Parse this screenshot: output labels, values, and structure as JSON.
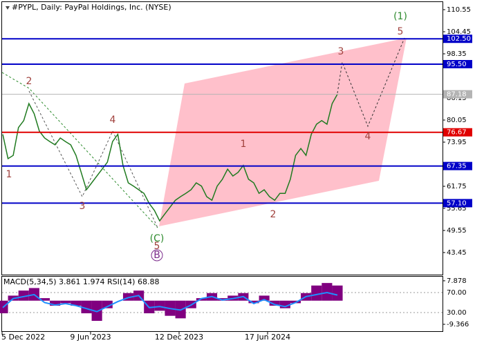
{
  "chart_data": [
    {
      "type": "line",
      "title": "#PYPL, Daily:  PayPal Holdings, Inc. (NYSE)",
      "color": "#1f7a1f",
      "values": [
        76.1,
        69.4,
        70.3,
        78.0,
        79.9,
        84.6,
        81.8,
        77.0,
        75.1,
        74.1,
        73.2,
        75.1,
        74.1,
        73.2,
        70.3,
        65.6,
        60.8,
        62.7,
        64.6,
        66.5,
        68.4,
        74.1,
        76.1,
        67.5,
        62.7,
        61.8,
        60.8,
        59.8,
        57.0,
        55.1,
        52.2,
        54.1,
        56.0,
        57.9,
        58.9,
        59.8,
        60.8,
        62.7,
        61.8,
        58.9,
        57.9,
        61.8,
        63.7,
        66.5,
        64.6,
        65.6,
        67.5,
        63.7,
        62.7,
        59.8,
        60.8,
        58.9,
        57.9,
        59.8,
        59.8,
        63.7,
        70.3,
        72.2,
        70.3,
        76.1,
        78.9,
        79.9,
        78.9,
        84.6,
        87.2
      ],
      "ylim": [
        37.54,
        112.65
      ],
      "yticks": [
        110.55,
        104.45,
        98.35,
        86.15,
        80.05,
        73.95,
        61.75,
        55.65,
        49.55,
        43.45
      ],
      "xtick_labels": [
        "5 Dec 2022",
        "9 Jun 2023",
        "12 Dec 2023",
        "17 Jun 2024"
      ],
      "levels": [
        {
          "value": 102.5,
          "label": "102.50",
          "color": "#0000c8"
        },
        {
          "value": 95.5,
          "label": "95.50",
          "color": "#0000c8"
        },
        {
          "value": 87.18,
          "label": "87.18",
          "color": "#b4b4b4"
        },
        {
          "value": 76.67,
          "label": "76.67",
          "color": "#e00000"
        },
        {
          "value": 67.35,
          "label": "67.35",
          "color": "#0000c8"
        },
        {
          "value": 57.1,
          "label": "57.10",
          "color": "#0000c8"
        }
      ],
      "wave_labels": [
        "1",
        "2",
        "3",
        "4",
        "(C)",
        "5",
        "B",
        "1",
        "2",
        "3",
        "4",
        "5",
        "(1)"
      ]
    },
    {
      "type": "macd",
      "title": "MACD(5,34,5) 3.861 1.974 RSI(14) 68.88",
      "macd_values": [
        -5,
        2,
        4,
        5,
        1,
        -2,
        -1,
        -2,
        -5,
        -8,
        -3,
        0,
        3,
        4,
        -5,
        -4,
        -6,
        -7,
        -3,
        1,
        3,
        1,
        2,
        3,
        -1,
        2,
        -2,
        -3,
        -1,
        3,
        6,
        7,
        6
      ],
      "macd_color": "#800080",
      "rsi_values": [
        40,
        58,
        62,
        66,
        50,
        45,
        48,
        44,
        38,
        32,
        42,
        52,
        60,
        64,
        40,
        42,
        38,
        35,
        45,
        58,
        62,
        55,
        58,
        62,
        48,
        56,
        46,
        42,
        50,
        62,
        66,
        70,
        65
      ],
      "rsi_color": "#1e90ff",
      "ylim": [
        -12.1,
        9.5
      ],
      "yticks": [
        -9.366,
        7.878
      ],
      "y2lim": [
        -7.2,
        101.7
      ],
      "y2ticks": [
        {
          "value": 30,
          "label": "30.00"
        },
        {
          "value": 70,
          "label": "70.00"
        }
      ]
    }
  ]
}
